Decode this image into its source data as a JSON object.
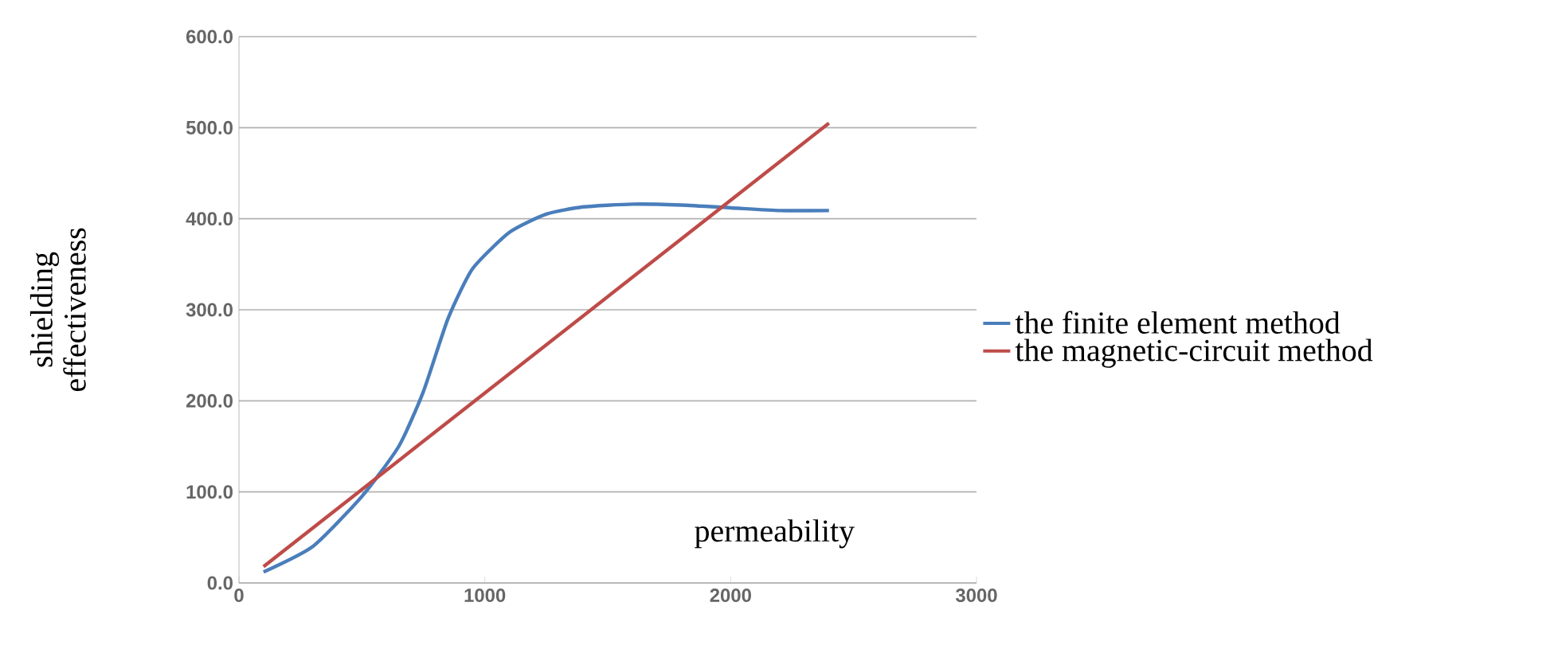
{
  "chart_data": {
    "type": "line",
    "xlabel": "permeability",
    "ylabel": "shielding effectiveness",
    "xlim": [
      0,
      3000
    ],
    "ylim": [
      0,
      600
    ],
    "xticks": [
      0,
      1000,
      2000,
      3000
    ],
    "yticks": [
      {
        "value": 0,
        "label": "0.0"
      },
      {
        "value": 100,
        "label": "100.0"
      },
      {
        "value": 200,
        "label": "200.0"
      },
      {
        "value": 300,
        "label": "300.0"
      },
      {
        "value": 400,
        "label": "400.0"
      },
      {
        "value": 500,
        "label": "500.0"
      },
      {
        "value": 600,
        "label": "600.0"
      }
    ],
    "grid": "y",
    "legend": "right",
    "marker": "none",
    "line_style": "solid",
    "series": [
      {
        "name": "the finite element method",
        "color": "#4a7ebb",
        "x": [
          100,
          300,
          500,
          650,
          750,
          850,
          950,
          1100,
          1250,
          1400,
          1600,
          1800,
          2000,
          2200,
          2400
        ],
        "values": [
          12,
          40,
          95,
          150,
          210,
          290,
          345,
          385,
          405,
          413,
          416,
          415,
          412,
          409,
          409
        ]
      },
      {
        "name": "the magnetic-circuit method",
        "color": "#be4b48",
        "x": [
          100,
          2400
        ],
        "values": [
          18,
          505
        ]
      }
    ]
  }
}
